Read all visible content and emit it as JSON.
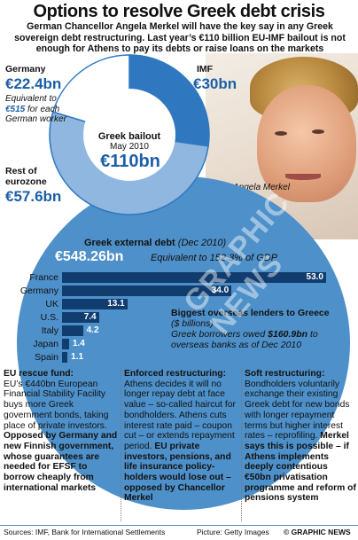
{
  "title": "Options to resolve Greek debt crisis",
  "intro": "German Chancellor Angela Merkel will have the key say in any Greek sovereign debt restructuring. Last year’s €110 billion EU-IMF bailout is not enough for Athens to pay its debts or raise loans on the markets",
  "bailout": {
    "label": "Greek bailout",
    "date": "May 2010",
    "total": "€110bn",
    "segments": [
      {
        "name": "Germany",
        "value_label": "€22.4bn",
        "value": 22.4,
        "color": "#ffffff",
        "note_parts": [
          "Equivalent to ",
          "€515",
          " for each German worker"
        ]
      },
      {
        "name": "IMF",
        "value_label": "€30bn",
        "value": 30,
        "color": "#2f78c0"
      },
      {
        "name": "Rest of eurozone",
        "value_label": "€57.6bn",
        "value": 57.6,
        "color": "#8fb7df"
      }
    ]
  },
  "photo_caption": "Angela Merkel",
  "chart_data": {
    "type": "bar",
    "title": "Greek external debt",
    "title_note": "(Dec 2010)",
    "total": "€548.26bn",
    "total_note": "Equivalent to 152.3% of GDP",
    "categories": [
      "France",
      "Germany",
      "UK",
      "U.S.",
      "Italy",
      "Japan",
      "Spain"
    ],
    "values": [
      53.0,
      34.0,
      13.1,
      7.4,
      4.2,
      1.4,
      1.1
    ],
    "value_labels": [
      "53.0",
      "34.0",
      "13.1",
      "7.4",
      "4.2",
      "1.4",
      "1.1"
    ],
    "xlim": [
      0,
      53
    ],
    "bar_color": "#103c6e"
  },
  "callout": {
    "heading": "Biggest overseas lenders to Greece",
    "unit": "($ billions)",
    "line1": "Greek borrowers owed",
    "amount": "$160.9bn",
    "line2": "to overseas banks as of Dec 2010"
  },
  "columns": [
    {
      "heading": "EU rescue fund:",
      "body": "EU’s €440bn European Financial Stability Facility buys more Greek government bonds, taking place of private investors.",
      "bold": "Opposed by Germany and new Finnish government, whose guarantees are needed for EFSF to borrow cheaply from international markets"
    },
    {
      "heading": "Enforced restructuring:",
      "body": "Athens decides it will no longer repay debt at face value – so-called haircut for bondholders. Athens cuts interest rate paid – coupon cut – or extends repayment period.",
      "bold": "EU private investors, pensions, and life insurance policy-holders would lose out – opposed by Chancellor Merkel"
    },
    {
      "heading": "Soft restructuring:",
      "body": "Bondholders voluntarily exchange their existing Greek debt for new bonds with longer repayment terms but higher interest rates – reprofiling.",
      "bold": "Merkel says this is possible – if Athens implements deeply contentious €50bn privatisation programme and reform of pensions system"
    }
  ],
  "footer": {
    "sources": "Sources: IMF, Bank for International Settlements",
    "picture": "Picture: Getty Images",
    "credit": "© GRAPHIC NEWS"
  },
  "watermark": "GRAPHIC NEWS"
}
